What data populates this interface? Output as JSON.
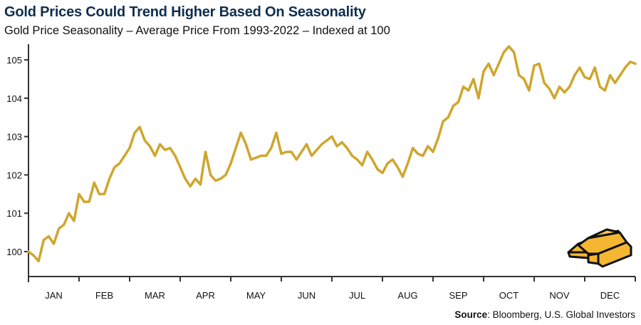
{
  "header": {
    "title": "Gold Prices Could Trend Higher Based On Seasonality",
    "subtitle": "Gold Price Seasonality – Average Price From 1993-2022 – Indexed at 100"
  },
  "footer": {
    "source_label": "Source",
    "source_text": ": Bloomberg, U.S. Global Investors"
  },
  "decoration": {
    "icon": "gold-bars-icon",
    "gold_color": "#f5b731",
    "outline_color": "#111111"
  },
  "chart_data": {
    "type": "line",
    "title": "Gold Prices Could Trend Higher Based On Seasonality",
    "subtitle": "Gold Price Seasonality – Average Price From 1993-2022 – Indexed at 100",
    "xlabel": "",
    "ylabel": "",
    "categories": [
      "JAN",
      "FEB",
      "MAR",
      "APR",
      "MAY",
      "JUN",
      "JUL",
      "AUG",
      "SEP",
      "OCT",
      "NOV",
      "DEC"
    ],
    "yticks": [
      100,
      101,
      102,
      103,
      104,
      105
    ],
    "ylim": [
      99.35,
      105.55
    ],
    "xlim": [
      0,
      12
    ],
    "grid": false,
    "legend": "none",
    "line_color": "#cfa62e",
    "series": [
      {
        "name": "Gold Price Seasonality Index",
        "x": [
          0,
          0.1,
          0.2,
          0.3,
          0.4,
          0.5,
          0.6,
          0.7,
          0.8,
          0.9,
          1.0,
          1.1,
          1.2,
          1.3,
          1.4,
          1.5,
          1.6,
          1.7,
          1.8,
          1.9,
          2.0,
          2.1,
          2.2,
          2.3,
          2.4,
          2.5,
          2.6,
          2.7,
          2.8,
          2.9,
          3.0,
          3.1,
          3.2,
          3.3,
          3.4,
          3.5,
          3.6,
          3.7,
          3.8,
          3.9,
          4.0,
          4.1,
          4.2,
          4.3,
          4.4,
          4.5,
          4.6,
          4.7,
          4.8,
          4.9,
          5.0,
          5.1,
          5.2,
          5.3,
          5.4,
          5.5,
          5.6,
          5.7,
          5.8,
          5.9,
          6.0,
          6.1,
          6.2,
          6.3,
          6.4,
          6.5,
          6.6,
          6.7,
          6.8,
          6.9,
          7.0,
          7.1,
          7.2,
          7.3,
          7.4,
          7.5,
          7.6,
          7.7,
          7.8,
          7.9,
          8.0,
          8.1,
          8.2,
          8.3,
          8.4,
          8.5,
          8.6,
          8.7,
          8.8,
          8.9,
          9.0,
          9.1,
          9.2,
          9.3,
          9.4,
          9.5,
          9.6,
          9.7,
          9.8,
          9.9,
          10.0,
          10.1,
          10.2,
          10.3,
          10.4,
          10.5,
          10.6,
          10.7,
          10.8,
          10.9,
          11.0,
          11.1,
          11.2,
          11.3,
          11.4,
          11.5,
          11.6,
          11.7,
          11.8,
          11.9,
          12.0
        ],
        "values": [
          100.0,
          99.9,
          99.75,
          100.3,
          100.4,
          100.2,
          100.6,
          100.7,
          101.0,
          100.8,
          101.5,
          101.3,
          101.3,
          101.8,
          101.5,
          101.5,
          101.9,
          102.2,
          102.3,
          102.5,
          102.7,
          103.1,
          103.25,
          102.9,
          102.75,
          102.5,
          102.8,
          102.65,
          102.7,
          102.5,
          102.2,
          101.9,
          101.7,
          101.9,
          101.75,
          102.6,
          102.0,
          101.85,
          101.9,
          102.0,
          102.3,
          102.7,
          103.1,
          102.8,
          102.4,
          102.45,
          102.5,
          102.5,
          102.7,
          103.1,
          102.55,
          102.6,
          102.6,
          102.4,
          102.6,
          102.8,
          102.5,
          102.65,
          102.8,
          102.9,
          103.0,
          102.75,
          102.85,
          102.7,
          102.5,
          102.4,
          102.25,
          102.6,
          102.4,
          102.15,
          102.05,
          102.3,
          102.4,
          102.2,
          101.95,
          102.3,
          102.7,
          102.55,
          102.5,
          102.75,
          102.6,
          102.95,
          103.4,
          103.5,
          103.8,
          103.9,
          104.3,
          104.2,
          104.5,
          104.0,
          104.7,
          104.9,
          104.6,
          104.9,
          105.2,
          105.35,
          105.2,
          104.6,
          104.5,
          104.2,
          104.85,
          104.9,
          104.4,
          104.25,
          104.0,
          104.3,
          104.15,
          104.3,
          104.6,
          104.8,
          104.55,
          104.5,
          104.8,
          104.3,
          104.2,
          104.6,
          104.4,
          104.6,
          104.8,
          104.95,
          104.9
        ]
      }
    ]
  }
}
